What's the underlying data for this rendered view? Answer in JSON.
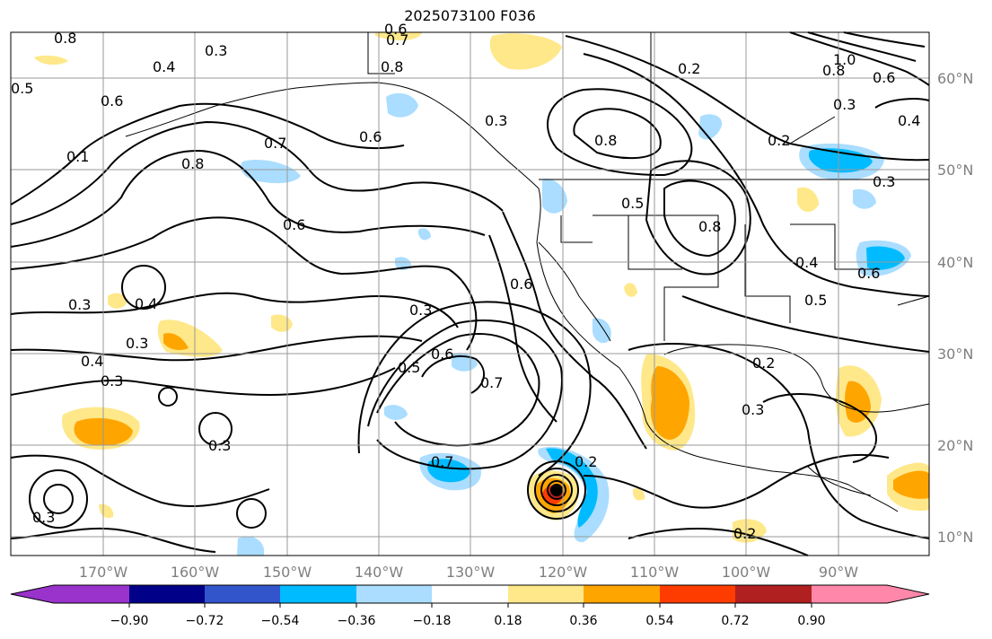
{
  "title": "2025073100 F036",
  "map": {
    "lon_ticks": [
      "170°W",
      "160°W",
      "150°W",
      "140°W",
      "130°W",
      "120°W",
      "110°W",
      "100°W",
      "90°W"
    ],
    "lat_ticks": [
      "60°N",
      "50°N",
      "40°N",
      "30°N",
      "20°N",
      "10°N"
    ],
    "contour_labels": [
      "0.8",
      "0.1",
      "0.3",
      "0.4",
      "0.6",
      "0.7",
      "0.6",
      "0.5",
      "0.8",
      "0.6",
      "0.7",
      "0.6",
      "0.8",
      "0.3",
      "0.4",
      "0.3",
      "0.3",
      "0.4",
      "0.3",
      "0.5",
      "0.6",
      "0.7",
      "0.6",
      "0.7",
      "0.2",
      "0.5",
      "0.8",
      "0.8",
      "0.2",
      "1.0",
      "0.8",
      "0.6",
      "0.3",
      "0.4",
      "0.3",
      "0.2",
      "0.4",
      "0.5",
      "0.2",
      "0.3",
      "0.2",
      "0.3",
      "0.6",
      "0.3",
      "0.3"
    ],
    "colors": {
      "deep_purple": "#9933cc",
      "navy": "#000088",
      "blue": "#3355cc",
      "cyan": "#00bbff",
      "light_blue": "#aaddff",
      "white": "#ffffff",
      "light_yellow": "#ffe88a",
      "orange": "#ffa500",
      "red_orange": "#ff3c00",
      "dark_red": "#b02020",
      "pink": "#ff88aa",
      "grid": "#999999",
      "contour": "#000000"
    }
  },
  "colorbar": {
    "tick_labels": [
      "−0.90",
      "−0.72",
      "−0.54",
      "−0.36",
      "−0.18",
      "0.18",
      "0.36",
      "0.54",
      "0.72",
      "0.90"
    ]
  }
}
